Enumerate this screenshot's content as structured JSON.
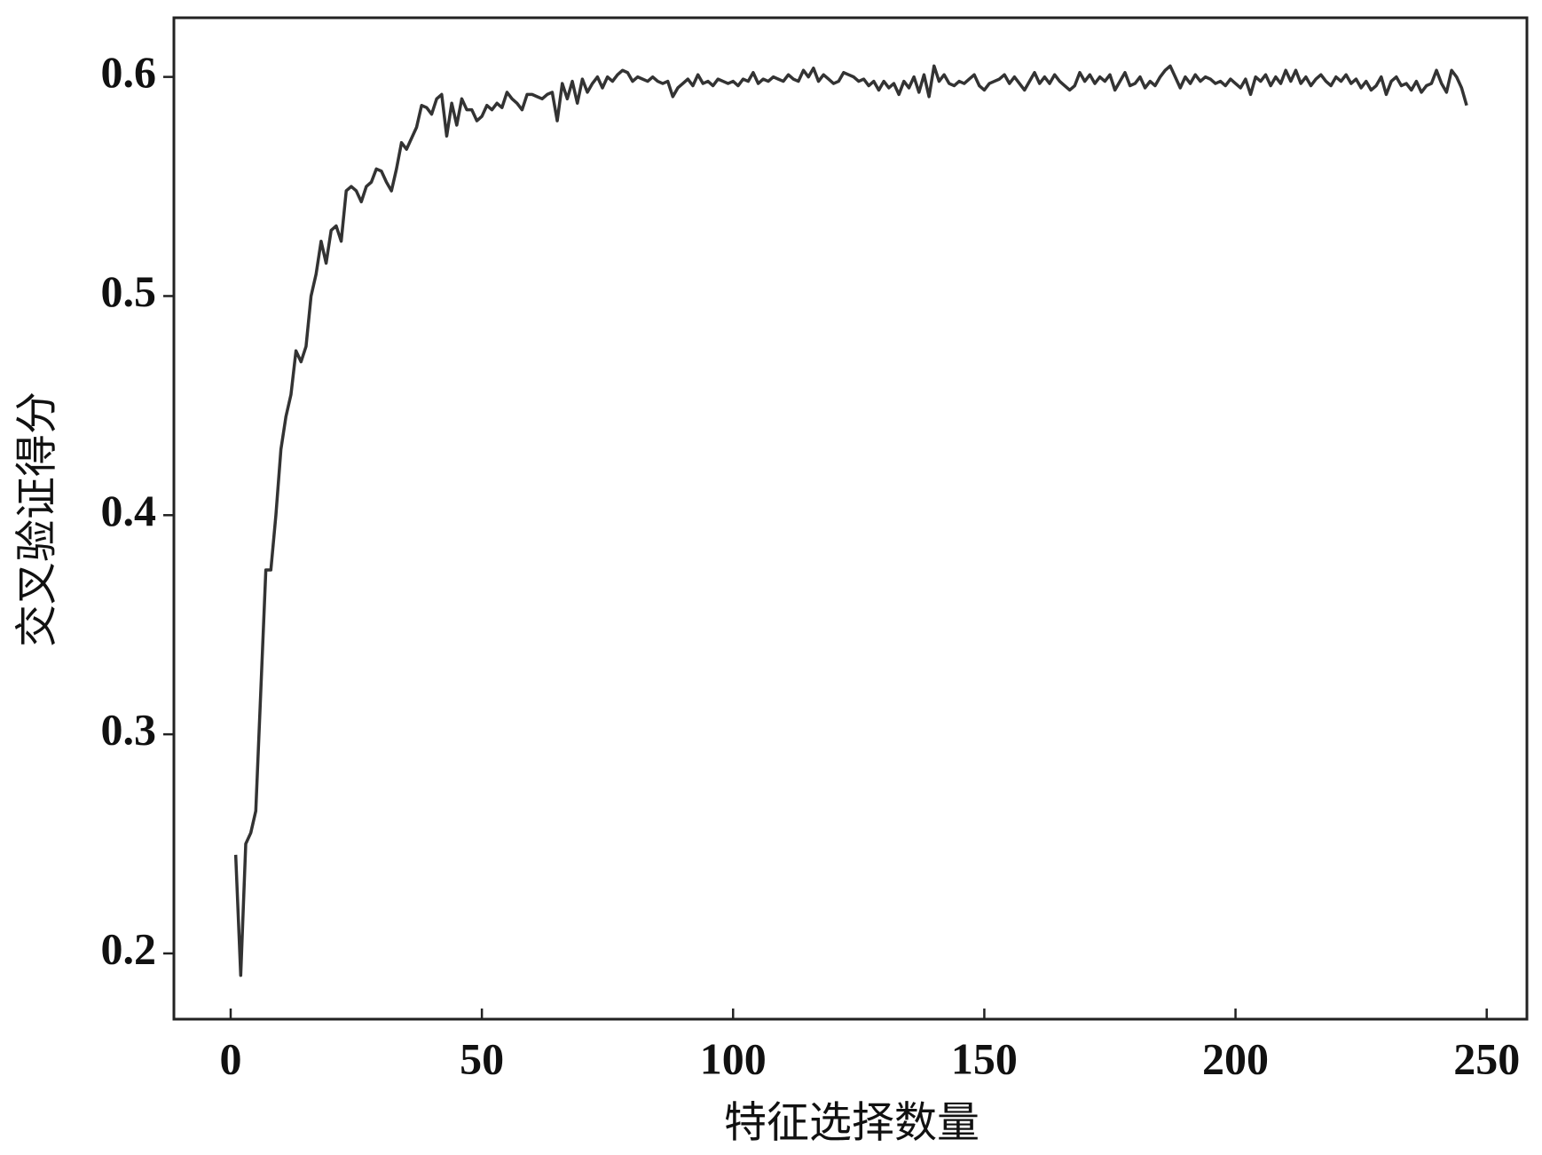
{
  "chart_data": {
    "type": "line",
    "xlabel": "特征选择数量",
    "ylabel": "交叉验证得分",
    "xlim": [
      -11.3,
      258
    ],
    "ylim": [
      0.17,
      0.627
    ],
    "xticks": [
      0,
      50,
      100,
      150,
      200,
      250
    ],
    "yticks": [
      0.2,
      0.3,
      0.4,
      0.5,
      0.6
    ],
    "grid": false,
    "series": [
      {
        "color": "#333333",
        "x": [
          1,
          2,
          3,
          4,
          5,
          6,
          7,
          8,
          9,
          10,
          11,
          12,
          13,
          14,
          15,
          16,
          17,
          18,
          19,
          20,
          21,
          22,
          23,
          24,
          25,
          26,
          27,
          28,
          29,
          30,
          31,
          32,
          33,
          34,
          35,
          36,
          37,
          38,
          39,
          40,
          41,
          42,
          43,
          44,
          45,
          46,
          47,
          48,
          49,
          50,
          51,
          52,
          53,
          54,
          55,
          56,
          57,
          58,
          59,
          60,
          61,
          62,
          63,
          64,
          65,
          66,
          67,
          68,
          69,
          70,
          71,
          72,
          73,
          74,
          75,
          76,
          77,
          78,
          79,
          80,
          81,
          82,
          83,
          84,
          85,
          86,
          87,
          88,
          89,
          90,
          91,
          92,
          93,
          94,
          95,
          96,
          97,
          98,
          99,
          100,
          101,
          102,
          103,
          104,
          105,
          106,
          107,
          108,
          109,
          110,
          111,
          112,
          113,
          114,
          115,
          116,
          117,
          118,
          119,
          120,
          121,
          122,
          123,
          124,
          125,
          126,
          127,
          128,
          129,
          130,
          131,
          132,
          133,
          134,
          135,
          136,
          137,
          138,
          139,
          140,
          141,
          142,
          143,
          144,
          145,
          146,
          147,
          148,
          149,
          150,
          151,
          152,
          153,
          154,
          155,
          156,
          157,
          158,
          159,
          160,
          161,
          162,
          163,
          164,
          165,
          166,
          167,
          168,
          169,
          170,
          171,
          172,
          173,
          174,
          175,
          176,
          177,
          178,
          179,
          180,
          181,
          182,
          183,
          184,
          185,
          186,
          187,
          188,
          189,
          190,
          191,
          192,
          193,
          194,
          195,
          196,
          197,
          198,
          199,
          200,
          201,
          202,
          203,
          204,
          205,
          206,
          207,
          208,
          209,
          210,
          211,
          212,
          213,
          214,
          215,
          216,
          217,
          218,
          219,
          220,
          221,
          222,
          223,
          224,
          225,
          226,
          227,
          228,
          229,
          230,
          231,
          232,
          233,
          234,
          235,
          236,
          237,
          238,
          239,
          240,
          241,
          242,
          243,
          244,
          245,
          246
        ],
        "values": [
          0.245,
          0.19,
          0.25,
          0.255,
          0.265,
          0.32,
          0.375,
          0.375,
          0.4,
          0.43,
          0.445,
          0.455,
          0.475,
          0.47,
          0.477,
          0.5,
          0.51,
          0.525,
          0.515,
          0.53,
          0.532,
          0.525,
          0.548,
          0.55,
          0.548,
          0.543,
          0.55,
          0.552,
          0.558,
          0.557,
          0.552,
          0.548,
          0.558,
          0.57,
          0.567,
          0.572,
          0.577,
          0.587,
          0.586,
          0.583,
          0.59,
          0.592,
          0.573,
          0.588,
          0.578,
          0.59,
          0.585,
          0.585,
          0.58,
          0.582,
          0.587,
          0.585,
          0.588,
          0.586,
          0.593,
          0.59,
          0.588,
          0.585,
          0.592,
          0.592,
          0.591,
          0.59,
          0.592,
          0.593,
          0.58,
          0.597,
          0.59,
          0.598,
          0.588,
          0.599,
          0.593,
          0.597,
          0.6,
          0.595,
          0.6,
          0.598,
          0.601,
          0.603,
          0.602,
          0.598,
          0.6,
          0.599,
          0.598,
          0.6,
          0.598,
          0.597,
          0.598,
          0.591,
          0.595,
          0.597,
          0.599,
          0.596,
          0.601,
          0.597,
          0.598,
          0.596,
          0.599,
          0.598,
          0.597,
          0.598,
          0.596,
          0.599,
          0.598,
          0.602,
          0.597,
          0.599,
          0.598,
          0.6,
          0.599,
          0.598,
          0.601,
          0.599,
          0.598,
          0.603,
          0.6,
          0.604,
          0.598,
          0.601,
          0.599,
          0.597,
          0.598,
          0.602,
          0.601,
          0.6,
          0.598,
          0.599,
          0.596,
          0.598,
          0.594,
          0.598,
          0.595,
          0.597,
          0.592,
          0.598,
          0.595,
          0.6,
          0.593,
          0.601,
          0.591,
          0.605,
          0.598,
          0.601,
          0.597,
          0.596,
          0.598,
          0.597,
          0.599,
          0.601,
          0.596,
          0.594,
          0.597,
          0.598,
          0.599,
          0.601,
          0.597,
          0.6,
          0.597,
          0.594,
          0.598,
          0.602,
          0.597,
          0.6,
          0.597,
          0.601,
          0.598,
          0.596,
          0.594,
          0.596,
          0.602,
          0.598,
          0.601,
          0.597,
          0.6,
          0.598,
          0.601,
          0.594,
          0.598,
          0.602,
          0.596,
          0.597,
          0.6,
          0.595,
          0.598,
          0.596,
          0.6,
          0.603,
          0.605,
          0.6,
          0.595,
          0.6,
          0.597,
          0.601,
          0.598,
          0.6,
          0.599,
          0.597,
          0.598,
          0.596,
          0.599,
          0.597,
          0.595,
          0.599,
          0.592,
          0.6,
          0.598,
          0.601,
          0.596,
          0.6,
          0.597,
          0.603,
          0.598,
          0.603,
          0.597,
          0.6,
          0.596,
          0.599,
          0.601,
          0.598,
          0.596,
          0.6,
          0.598,
          0.601,
          0.597,
          0.599,
          0.595,
          0.598,
          0.594,
          0.596,
          0.6,
          0.592,
          0.598,
          0.6,
          0.596,
          0.597,
          0.594,
          0.598,
          0.593,
          0.596,
          0.597,
          0.603,
          0.597,
          0.593,
          0.603,
          0.6,
          0.595,
          0.587
        ]
      }
    ]
  }
}
